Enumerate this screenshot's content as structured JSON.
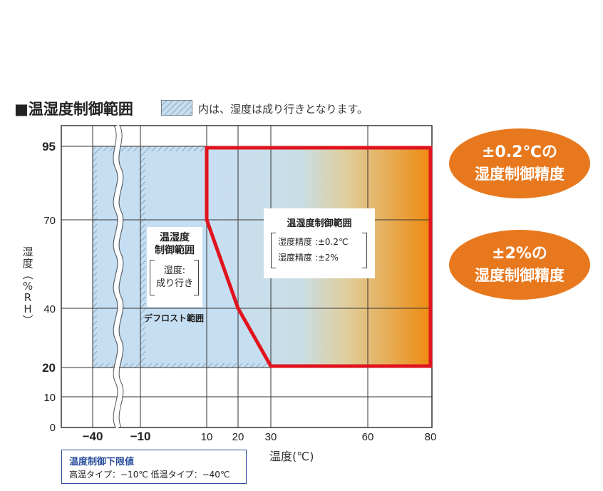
{
  "title": "■温湿度制御範囲",
  "legend_text": "内は、湿度は成り行きとなります。",
  "axis": {
    "x_ticks": [
      "−40",
      "−10",
      "10",
      "20",
      "30",
      "60",
      "80"
    ],
    "y_ticks": [
      "95",
      "70",
      "40",
      "20",
      "10",
      "0"
    ],
    "x_label": "温度(℃)",
    "y_label": [
      "湿",
      "度",
      "︵",
      "%",
      "R",
      "H",
      "︶"
    ]
  },
  "control_range": {
    "title": "温湿度制御範囲",
    "line1": "湿度精度 :±0.2℃",
    "line2": "湿度精度 :±2%"
  },
  "uncontrolled_range": {
    "title_line1": "温湿度",
    "title_line2": "制御範囲",
    "sub_line1": "湿度:",
    "sub_line2": "成り行き"
  },
  "defrost_label": "デフロスト範囲",
  "badges": [
    {
      "line1": "±0.2℃の",
      "line2": "湿度制御精度"
    },
    {
      "line1": "±2%の",
      "line2": "湿度制御精度"
    }
  ],
  "lower_limit": {
    "title": "温度制御下限値",
    "body": "高温タイプ：−10℃  低温タイプ：−40℃"
  },
  "colors": {
    "control_border": "#e0141e",
    "region_fill": "#c6def2",
    "gradient_end": "#ee8a10",
    "badge": "#e8781e",
    "lower_box_border": "#2a4e9c"
  },
  "chart_data": {
    "type": "area",
    "xlabel": "温度(℃)",
    "ylabel": "湿度(%RH)",
    "x_ticks": [
      -40,
      -10,
      10,
      20,
      30,
      60,
      80
    ],
    "y_ticks": [
      0,
      10,
      20,
      40,
      70,
      95
    ],
    "regions": [
      {
        "name": "温湿度制御範囲",
        "polygon": [
          [
            10,
            95
          ],
          [
            80,
            95
          ],
          [
            80,
            20
          ],
          [
            30,
            20
          ],
          [
            20,
            40
          ],
          [
            10,
            70
          ]
        ]
      },
      {
        "name": "湿度成り行き範囲",
        "polygon": [
          [
            -40,
            95
          ],
          [
            10,
            95
          ],
          [
            10,
            70
          ],
          [
            20,
            40
          ],
          [
            30,
            20
          ],
          [
            -40,
            20
          ]
        ]
      }
    ]
  }
}
